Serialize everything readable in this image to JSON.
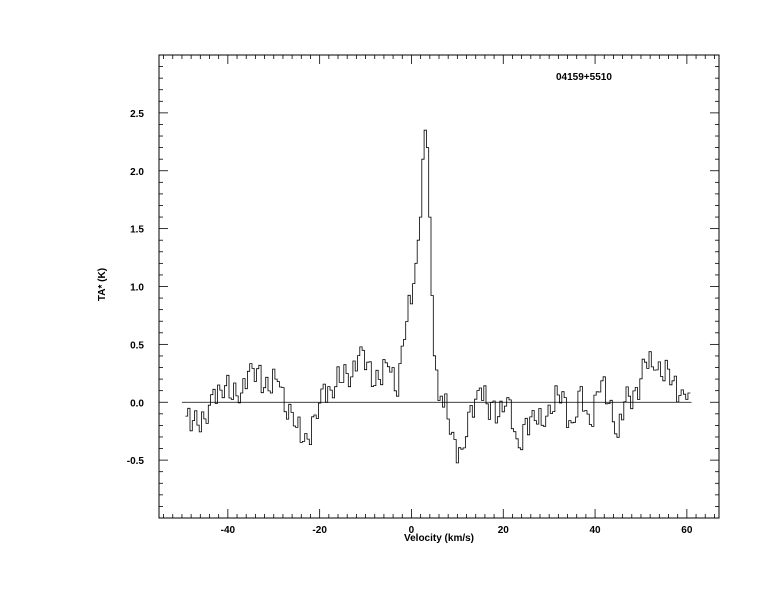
{
  "chart_data": {
    "type": "line",
    "drawstyle": "steps",
    "annotation": "04159+5510",
    "xlabel": "Velocity (km/s)",
    "ylabel": "TA* (K)",
    "xlim": [
      -55,
      67
    ],
    "ylim": [
      -1.0,
      3.0
    ],
    "x_ticks": [
      -40,
      -20,
      0,
      20,
      40,
      60
    ],
    "y_ticks": [
      -0.5,
      0.0,
      0.5,
      1.0,
      1.5,
      2.0,
      2.5
    ],
    "x_tick_labels": [
      "-40",
      "-20",
      "0",
      "20",
      "40",
      "60"
    ],
    "y_tick_labels": [
      "-0.5",
      "0.0",
      "0.5",
      "1.0",
      "1.5",
      "2.0",
      "2.5"
    ],
    "baseline": {
      "y": 0.0,
      "x_range": [
        -50,
        61
      ]
    },
    "grid": false,
    "series": [
      {
        "x": [
          -49.0,
          -47.0,
          -45.0,
          -43.0,
          -41.0,
          -39.0,
          -37.0,
          -35.0,
          -33.0,
          -31.0,
          -29.0,
          -27.0,
          -25.0,
          -23.0,
          -21.0,
          -19.0,
          -17.0,
          -15.0,
          -13.0,
          -11.0,
          -9.0,
          -7.0,
          -5.0,
          -3.0,
          -1.0,
          0.0,
          1.0,
          2.0,
          2.5,
          3.0,
          3.5,
          4.0,
          4.5,
          5.0,
          5.5,
          6.0,
          7.0,
          9.0,
          11.0,
          13.0,
          15.0,
          17.0,
          19.0,
          21.0,
          23.0,
          25.0,
          27.0,
          29.0,
          31.0,
          33.0,
          35.0,
          37.0,
          39.0,
          41.0,
          43.0,
          45.0,
          47.0,
          49.0,
          51.0,
          53.0,
          55.0,
          57.0,
          59.0,
          60.5
        ],
        "y": [
          -0.18,
          -0.1,
          -0.25,
          0.1,
          0.15,
          0.05,
          0.15,
          0.22,
          0.25,
          0.1,
          0.2,
          0.0,
          -0.25,
          -0.3,
          -0.2,
          0.1,
          0.15,
          0.2,
          0.3,
          0.4,
          0.25,
          0.2,
          0.3,
          0.2,
          0.7,
          0.85,
          1.2,
          1.6,
          2.1,
          2.35,
          2.2,
          1.6,
          0.8,
          0.4,
          0.25,
          0.15,
          0.0,
          -0.3,
          -0.45,
          -0.15,
          0.2,
          -0.1,
          -0.05,
          0.05,
          -0.45,
          -0.15,
          -0.2,
          -0.1,
          0.0,
          0.05,
          -0.2,
          0.0,
          -0.15,
          0.15,
          0.05,
          -0.25,
          0.0,
          0.1,
          0.3,
          0.35,
          0.3,
          0.15,
          0.1,
          0.08
        ]
      }
    ]
  }
}
